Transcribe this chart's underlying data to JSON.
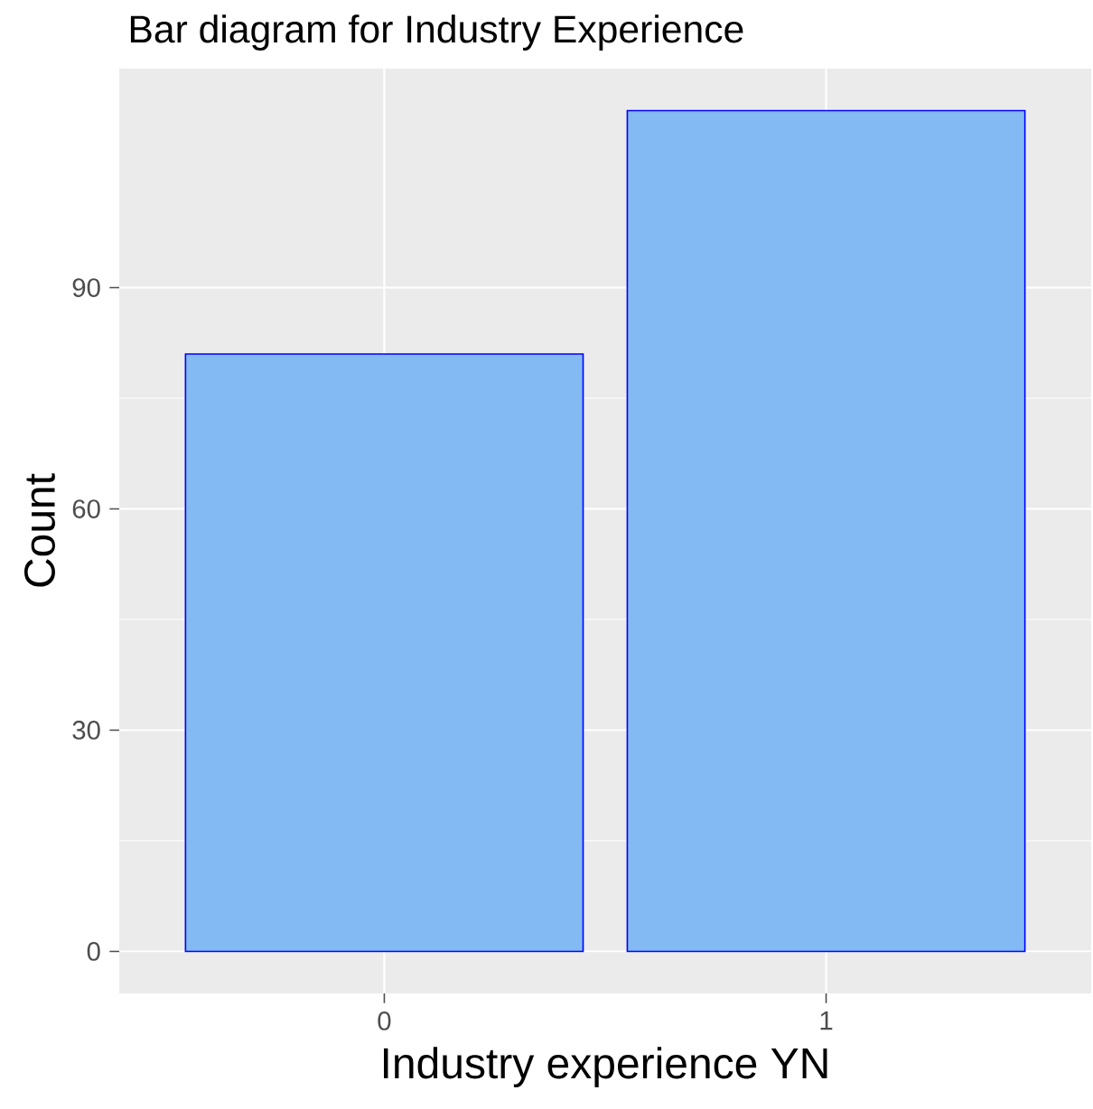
{
  "chart_data": {
    "type": "bar",
    "title": "Bar diagram for Industry Experience",
    "xlabel": "Industry experience YN",
    "ylabel": "Count",
    "categories": [
      "0",
      "1"
    ],
    "values": [
      81,
      114
    ],
    "color": "#84baf4",
    "ylim": [
      -5.7,
      119.7
    ],
    "yticks": [
      0,
      30,
      60,
      90
    ],
    "grid": true
  }
}
